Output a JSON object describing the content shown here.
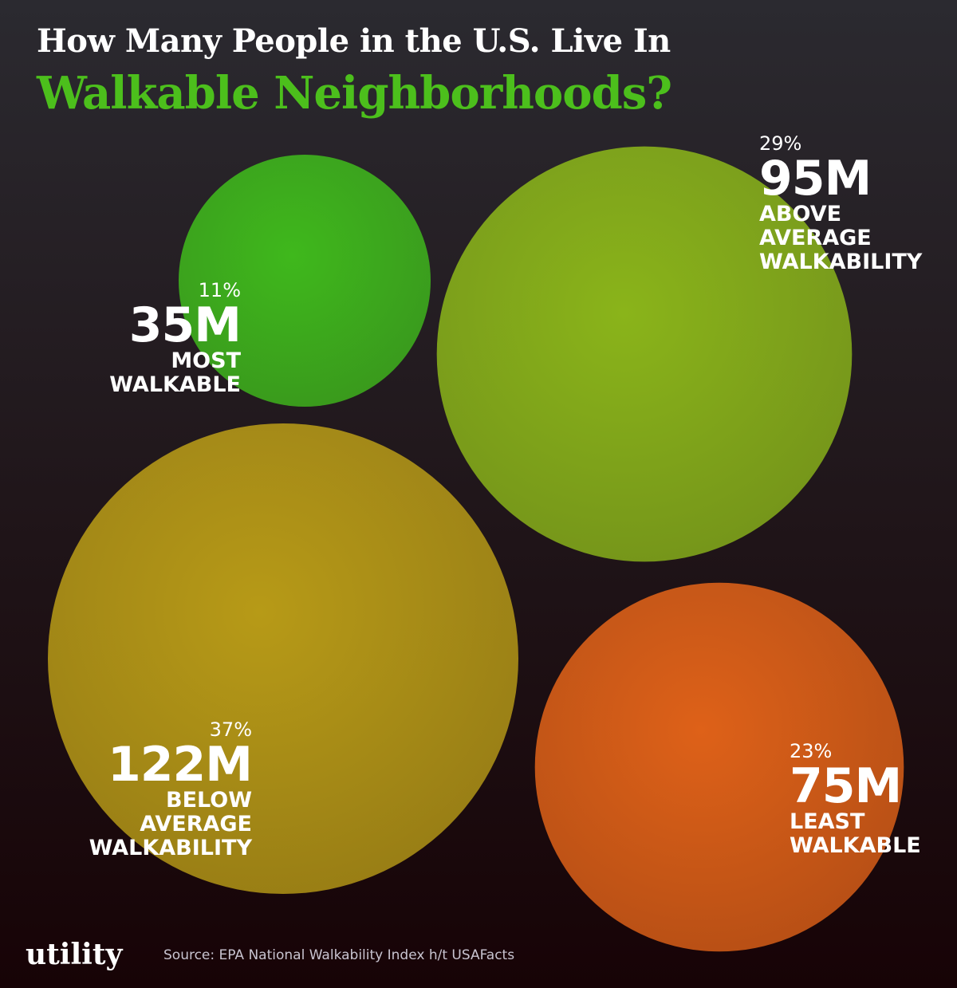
{
  "chart_data": {
    "type": "bubble",
    "title": "How Many People in the U.S. Live In",
    "subtitle": "Walkable Neighborhoods?",
    "categories": [
      "MOST WALKABLE",
      "ABOVE AVERAGE WALKABILITY",
      "BELOW AVERAGE WALKABILITY",
      "LEAST WALKABLE"
    ],
    "values": [
      35000000,
      95000000,
      122000000,
      75000000
    ],
    "value_labels": [
      "35M",
      "95M",
      "122M",
      "75M"
    ],
    "shares": [
      11,
      29,
      37,
      23
    ],
    "share_labels": [
      "11%",
      "29%",
      "37%",
      "23%"
    ],
    "colors": [
      "#3fb81c",
      "#8ab41a",
      "#b79a17",
      "#de6118"
    ],
    "source": "Source: EPA National Walkability Index h/t USAFacts",
    "brand": "utility"
  }
}
